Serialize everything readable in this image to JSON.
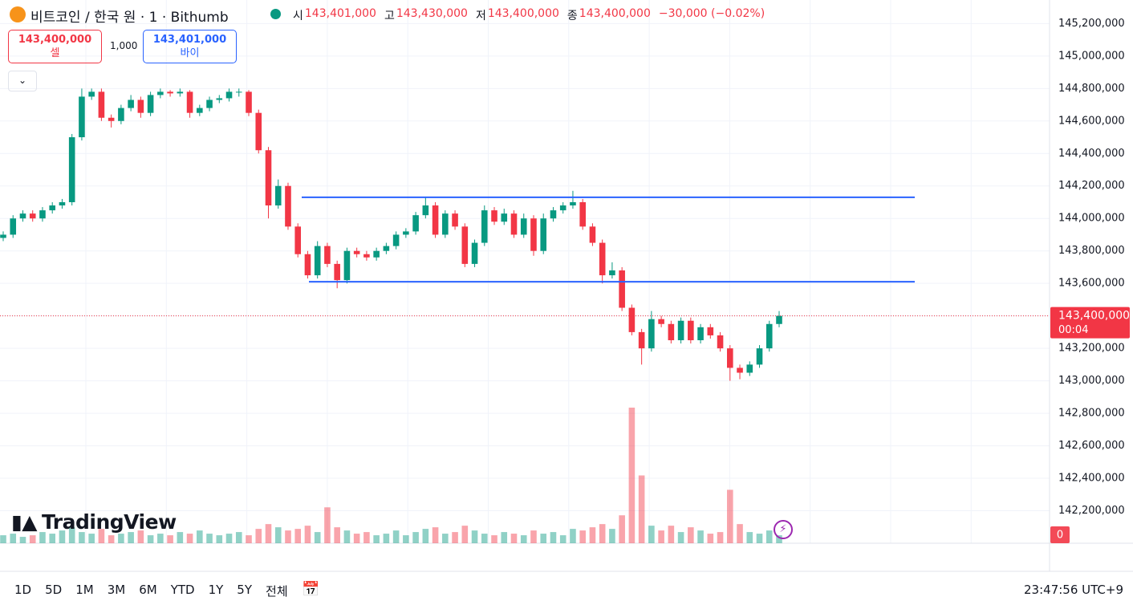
{
  "header": {
    "symbol": "비트코인 / 한국 원 · 1 · Bithumb",
    "open_label": "시",
    "open": "143,401,000",
    "high_label": "고",
    "high": "143,430,000",
    "low_label": "저",
    "low": "143,400,000",
    "close_label": "종",
    "close": "143,400,000",
    "change": "−30,000 (−0.02%)"
  },
  "trade": {
    "sell_price": "143,400,000",
    "sell": "셀",
    "quantity": "1,000",
    "buy_price": "143,401,000",
    "buy": "바이"
  },
  "logo": "TradingView",
  "periods": [
    "1D",
    "5D",
    "1M",
    "3M",
    "6M",
    "YTD",
    "1Y",
    "5Y",
    "전체"
  ],
  "clock": "23:47:56 UTC+9",
  "chart_data": {
    "type": "candlestick",
    "up_color": "#089981",
    "down_color": "#f23645",
    "ylim": [
      142000000,
      145350000
    ],
    "yticks": [
      {
        "value": 142200000,
        "label": "142,200,000"
      },
      {
        "value": 142400000,
        "label": "142,400,000"
      },
      {
        "value": 142600000,
        "label": "142,600,000"
      },
      {
        "value": 142800000,
        "label": "142,800,000"
      },
      {
        "value": 143000000,
        "label": "143,000,000"
      },
      {
        "value": 143200000,
        "label": "143,200,000"
      },
      {
        "value": 143400000,
        "label": "143,400,000"
      },
      {
        "value": 143600000,
        "label": "143,600,000"
      },
      {
        "value": 143800000,
        "label": "143,800,000"
      },
      {
        "value": 144000000,
        "label": "144,000,000"
      },
      {
        "value": 144200000,
        "label": "144,200,000"
      },
      {
        "value": 144400000,
        "label": "144,400,000"
      },
      {
        "value": 144600000,
        "label": "144,600,000"
      },
      {
        "value": 144800000,
        "label": "144,800,000"
      },
      {
        "value": 145000000,
        "label": "145,000,000"
      },
      {
        "value": 145200000,
        "label": "145,200,000"
      }
    ],
    "grid": true,
    "open": [
      143880000,
      143900000,
      144000000,
      144030000,
      144000000,
      144050000,
      144080000,
      144100000,
      144500000,
      144750000,
      144780000,
      144620000,
      144600000,
      144680000,
      144730000,
      144650000,
      144760000,
      144780000,
      144770000,
      144780000,
      144650000,
      144680000,
      144730000,
      144740000,
      144780000,
      144780000,
      144650000,
      144420000,
      144080000,
      144200000,
      143950000,
      143780000,
      143650000,
      143830000,
      143720000,
      143620000,
      143800000,
      143780000,
      143760000,
      143800000,
      143830000,
      143900000,
      143920000,
      144020000,
      144080000,
      143900000,
      144030000,
      143950000,
      143720000,
      143850000,
      144050000,
      143980000,
      144030000,
      143900000,
      144000000,
      143800000,
      144000000,
      144050000,
      144080000,
      144100000,
      143950000,
      143850000,
      143650000,
      143680000,
      143450000,
      143300000,
      143200000,
      143380000,
      143350000,
      143250000,
      143370000,
      143250000,
      143330000,
      143280000,
      143200000,
      143080000,
      143050000,
      143100000,
      143200000,
      143350000
    ],
    "high": [
      143920000,
      144020000,
      144050000,
      144050000,
      144070000,
      144100000,
      144120000,
      144520000,
      144800000,
      144800000,
      144800000,
      144640000,
      144700000,
      144760000,
      144750000,
      144780000,
      144800000,
      144790000,
      144800000,
      144790000,
      144700000,
      144750000,
      144760000,
      144800000,
      144800000,
      144790000,
      144670000,
      144440000,
      144240000,
      144220000,
      143970000,
      143800000,
      143860000,
      143850000,
      143740000,
      143820000,
      143820000,
      143800000,
      143820000,
      143850000,
      143920000,
      143940000,
      144040000,
      144130000,
      144100000,
      144050000,
      144050000,
      143970000,
      143870000,
      144080000,
      144070000,
      144060000,
      144050000,
      144030000,
      144020000,
      144030000,
      144070000,
      144100000,
      144170000,
      144120000,
      143970000,
      143870000,
      143730000,
      143700000,
      143470000,
      143320000,
      143430000,
      143400000,
      143370000,
      143390000,
      143390000,
      143350000,
      143350000,
      143300000,
      143220000,
      143100000,
      143120000,
      143220000,
      143370000,
      143430000
    ],
    "low": [
      143860000,
      143880000,
      143980000,
      143980000,
      143980000,
      144030000,
      144060000,
      144080000,
      144480000,
      144730000,
      144600000,
      144560000,
      144580000,
      144660000,
      144620000,
      144630000,
      144740000,
      144750000,
      144750000,
      144620000,
      144630000,
      144660000,
      144710000,
      144720000,
      144750000,
      144630000,
      144400000,
      144000000,
      144060000,
      143930000,
      143760000,
      143630000,
      143630000,
      143700000,
      143570000,
      143600000,
      143760000,
      143740000,
      143740000,
      143780000,
      143810000,
      143880000,
      143900000,
      144000000,
      143880000,
      143880000,
      143930000,
      143700000,
      143700000,
      143830000,
      143960000,
      143960000,
      143880000,
      143880000,
      143770000,
      143780000,
      143980000,
      144030000,
      144060000,
      143930000,
      143830000,
      143600000,
      143630000,
      143430000,
      143280000,
      143100000,
      143180000,
      143330000,
      143230000,
      143230000,
      143230000,
      143230000,
      143260000,
      143180000,
      143000000,
      143010000,
      143030000,
      143080000,
      143180000,
      143330000
    ],
    "close": [
      143900000,
      144000000,
      144030000,
      144000000,
      144050000,
      144080000,
      144100000,
      144500000,
      144750000,
      144780000,
      144620000,
      144600000,
      144680000,
      144730000,
      144650000,
      144760000,
      144780000,
      144770000,
      144780000,
      144650000,
      144680000,
      144730000,
      144740000,
      144780000,
      144780000,
      144650000,
      144420000,
      144080000,
      144200000,
      143950000,
      143780000,
      143650000,
      143830000,
      143720000,
      143620000,
      143800000,
      143780000,
      143760000,
      143800000,
      143830000,
      143900000,
      143920000,
      144020000,
      144080000,
      143900000,
      144030000,
      143950000,
      143720000,
      143850000,
      144050000,
      143980000,
      144030000,
      143900000,
      144000000,
      143800000,
      144000000,
      144050000,
      144080000,
      144100000,
      143950000,
      143850000,
      143650000,
      143680000,
      143450000,
      143300000,
      143200000,
      143380000,
      143350000,
      143250000,
      143370000,
      143250000,
      143330000,
      143280000,
      143200000,
      143080000,
      143050000,
      143100000,
      143200000,
      143350000,
      143400000
    ],
    "volume": [
      10,
      12,
      8,
      10,
      14,
      12,
      16,
      20,
      14,
      12,
      18,
      10,
      12,
      14,
      16,
      10,
      12,
      10,
      14,
      12,
      16,
      12,
      10,
      12,
      14,
      10,
      18,
      24,
      20,
      16,
      18,
      22,
      14,
      45,
      20,
      16,
      12,
      14,
      10,
      12,
      16,
      10,
      14,
      18,
      20,
      12,
      14,
      22,
      16,
      12,
      10,
      14,
      12,
      10,
      16,
      12,
      14,
      10,
      18,
      16,
      20,
      24,
      18,
      35,
      170,
      85,
      22,
      16,
      22,
      14,
      20,
      16,
      12,
      14,
      67,
      24,
      14,
      12,
      16,
      10
    ],
    "vlim": [
      0,
      340
    ],
    "hlines": [
      {
        "value": 144130000,
        "color": "#2962ff"
      },
      {
        "value": 143610000,
        "color": "#2962ff"
      }
    ],
    "last_price": {
      "value": 143400000,
      "label": "143,400,000",
      "countdown": "00:04",
      "color": "#f23645"
    },
    "volume_label": "0"
  }
}
